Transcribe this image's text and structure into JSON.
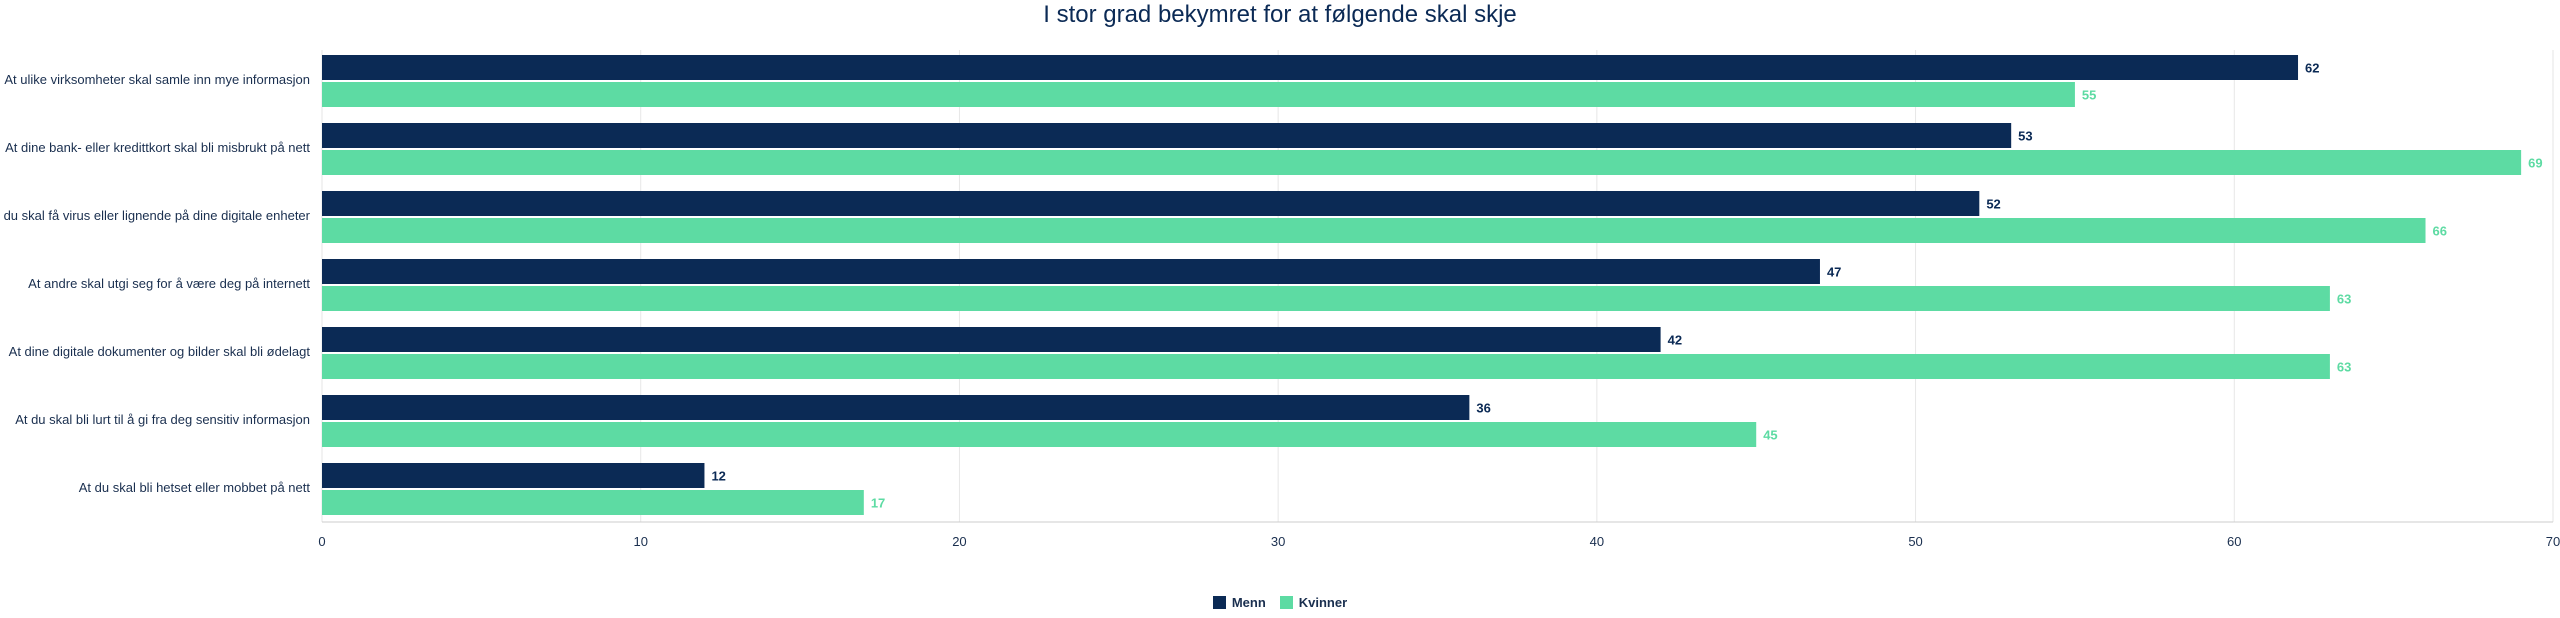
{
  "chart_data": {
    "type": "bar",
    "orientation": "horizontal",
    "title": "I stor grad bekymret for at følgende skal skje",
    "categories": [
      "At ulike virksomheter skal samle inn mye informasjon",
      "At dine bank- eller kredittkort skal bli misbrukt på nett",
      "At du skal få virus eller lignende på dine digitale enheter",
      "At andre skal utgi seg for å være deg på internett",
      "At dine digitale dokumenter og bilder skal bli ødelagt",
      "At du skal bli lurt til å gi fra deg sensitiv informasjon",
      "At du skal bli hetset eller mobbet på nett"
    ],
    "series": [
      {
        "name": "Menn",
        "color": "#0b2a55",
        "values": [
          62,
          53,
          52,
          47,
          42,
          36,
          12
        ]
      },
      {
        "name": "Kvinner",
        "color": "#5ddba3",
        "values": [
          55,
          69,
          66,
          63,
          63,
          45,
          17
        ]
      }
    ],
    "xlim": [
      0,
      70
    ],
    "xticks": [
      0,
      10,
      20,
      30,
      40,
      50,
      60,
      70
    ],
    "grid": true,
    "legend": "bottom-center"
  }
}
